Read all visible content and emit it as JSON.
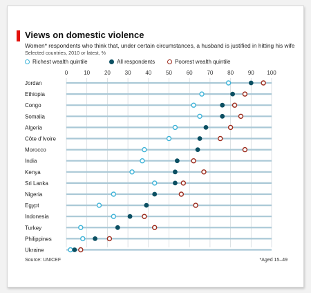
{
  "title": "Views on domestic violence",
  "subtitle": "Women* respondents who think that, under certain circumstances, a husband is justified in hitting his wife",
  "note": "Selected countries, 2010 or latest, %",
  "source": "Source: UNICEF",
  "footnote": "*Aged 15–49",
  "colors": {
    "richest": "#3fb4d9",
    "all": "#0b4f62",
    "poorest": "#9c2b1c",
    "row_line": "#a9c8d6",
    "title_bar": "#e3120b"
  },
  "legend": [
    {
      "key": "richest",
      "label": "Richest wealth quintile",
      "style": "hollow"
    },
    {
      "key": "all",
      "label": "All respondents",
      "style": "filled"
    },
    {
      "key": "poorest",
      "label": "Poorest wealth quintile",
      "style": "hollow"
    }
  ],
  "chart_data": {
    "type": "dot-range",
    "x_ticks": [
      0,
      10,
      20,
      30,
      40,
      50,
      60,
      70,
      80,
      90,
      100
    ],
    "xlim": [
      0,
      100
    ],
    "categories": [
      "Jordan",
      "Ethiopia",
      "Congo",
      "Somalia",
      "Algeria",
      "Côte d’Ivoire",
      "Morocco",
      "India",
      "Kenya",
      "Sri Lanka",
      "Nigeria",
      "Egypt",
      "Indonesia",
      "Turkey",
      "Philippines",
      "Ukraine"
    ],
    "series": [
      {
        "name": "Richest wealth quintile",
        "key": "richest",
        "values": [
          79,
          66,
          62,
          65,
          53,
          50,
          38,
          37,
          32,
          43,
          23,
          16,
          23,
          7,
          8,
          2
        ]
      },
      {
        "name": "All respondents",
        "key": "all",
        "values": [
          90,
          81,
          76,
          76,
          68,
          65,
          64,
          54,
          53,
          53,
          43,
          39,
          31,
          25,
          14,
          4
        ]
      },
      {
        "name": "Poorest wealth quintile",
        "key": "poorest",
        "values": [
          96,
          87,
          82,
          85,
          80,
          75,
          87,
          62,
          67,
          57,
          56,
          63,
          38,
          43,
          21,
          7
        ]
      }
    ]
  }
}
